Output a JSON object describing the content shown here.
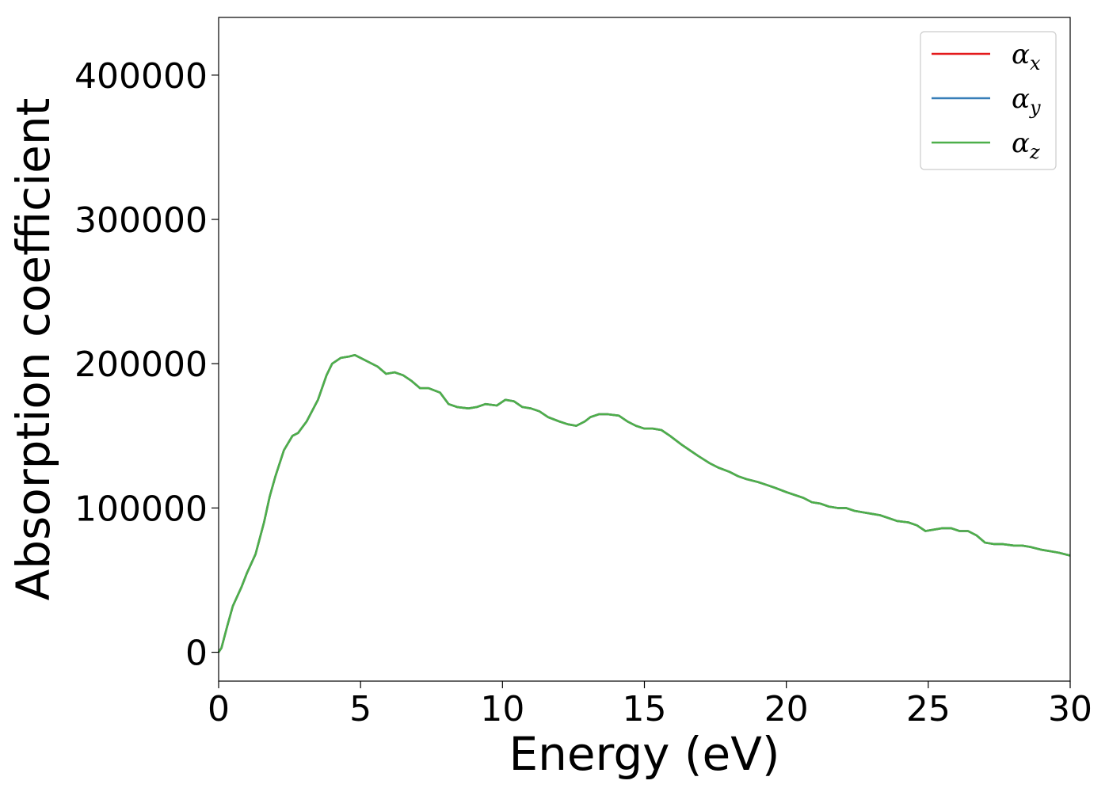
{
  "chart_data": {
    "type": "line",
    "xlabel": "Energy (eV)",
    "ylabel": "Absorption coefficient",
    "xlim": [
      0,
      30
    ],
    "ylim": [
      -20000,
      440000
    ],
    "xticks": [
      0,
      5,
      10,
      15,
      20,
      25,
      30
    ],
    "xtick_labels": [
      "0",
      "5",
      "10",
      "15",
      "20",
      "25",
      "30"
    ],
    "yticks": [
      0,
      100000,
      200000,
      300000,
      400000
    ],
    "ytick_labels": [
      "0",
      "100000",
      "200000",
      "300000",
      "400000"
    ],
    "grid": false,
    "legend_position": "top-right",
    "series": [
      {
        "name": "α",
        "sub": "x",
        "color": "#e41a1c"
      },
      {
        "name": "α",
        "sub": "y",
        "color": "#377eb8"
      },
      {
        "name": "α",
        "sub": "z",
        "color": "#4daf4a"
      }
    ],
    "x": [
      0,
      0.1,
      0.3,
      0.5,
      0.8,
      1.0,
      1.3,
      1.6,
      1.8,
      2.0,
      2.3,
      2.6,
      2.8,
      3.1,
      3.5,
      3.8,
      4.0,
      4.3,
      4.6,
      4.8,
      5.0,
      5.3,
      5.6,
      5.9,
      6.2,
      6.5,
      6.8,
      7.1,
      7.4,
      7.8,
      8.1,
      8.4,
      8.8,
      9.1,
      9.4,
      9.8,
      10.1,
      10.4,
      10.7,
      11.0,
      11.3,
      11.6,
      12.0,
      12.3,
      12.6,
      12.9,
      13.1,
      13.4,
      13.7,
      14.1,
      14.4,
      14.7,
      15.0,
      15.3,
      15.6,
      15.9,
      16.3,
      16.6,
      16.9,
      17.3,
      17.6,
      18.0,
      18.3,
      18.6,
      19.0,
      19.3,
      19.6,
      20.0,
      20.3,
      20.6,
      20.9,
      21.2,
      21.5,
      21.8,
      22.1,
      22.4,
      22.7,
      23.0,
      23.3,
      23.6,
      23.9,
      24.3,
      24.6,
      24.9,
      25.2,
      25.5,
      25.8,
      26.1,
      26.4,
      26.7,
      27.0,
      27.3,
      27.6,
      28.0,
      28.3,
      28.6,
      29.0,
      29.3,
      29.6,
      30.0
    ],
    "y": [
      0,
      3000,
      18000,
      32000,
      45000,
      55000,
      68000,
      90000,
      108000,
      122000,
      140000,
      150000,
      152000,
      160000,
      175000,
      192000,
      200000,
      204000,
      205000,
      206000,
      204000,
      201000,
      198000,
      193000,
      194000,
      192000,
      188000,
      183000,
      183000,
      180000,
      172000,
      170000,
      169000,
      170000,
      172000,
      171000,
      175000,
      174000,
      170000,
      169000,
      167000,
      163000,
      160000,
      158000,
      157000,
      160000,
      163000,
      165000,
      165000,
      164000,
      160000,
      157000,
      155000,
      155000,
      154000,
      150000,
      144000,
      140000,
      136000,
      131000,
      128000,
      125000,
      122000,
      120000,
      118000,
      116000,
      114000,
      111000,
      109000,
      107000,
      104000,
      103000,
      101000,
      100000,
      100000,
      98000,
      97000,
      96000,
      95000,
      93000,
      91000,
      90000,
      88000,
      84000,
      85000,
      86000,
      86000,
      84000,
      84000,
      81000,
      76000,
      75000,
      75000,
      74000,
      74000,
      73000,
      71000,
      70000,
      69000,
      67000
    ]
  }
}
